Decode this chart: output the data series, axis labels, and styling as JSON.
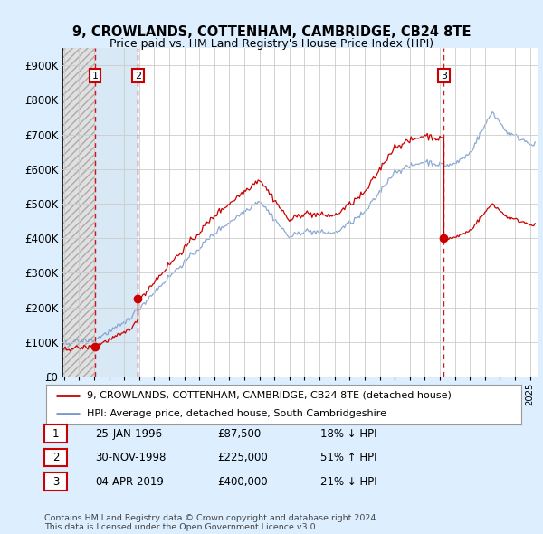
{
  "title1": "9, CROWLANDS, COTTENHAM, CAMBRIDGE, CB24 8TE",
  "title2": "Price paid vs. HM Land Registry's House Price Index (HPI)",
  "ytick_values": [
    0,
    100000,
    200000,
    300000,
    400000,
    500000,
    600000,
    700000,
    800000,
    900000
  ],
  "ylim": [
    0,
    950000
  ],
  "xlim_start": 1993.9,
  "xlim_end": 2025.5,
  "sale_color": "#cc0000",
  "hpi_color": "#7799cc",
  "legend_label1": "9, CROWLANDS, COTTENHAM, CAMBRIDGE, CB24 8TE (detached house)",
  "legend_label2": "HPI: Average price, detached house, South Cambridgeshire",
  "sale1_year": 1996.07,
  "sale1_price": 87500,
  "sale2_year": 1998.92,
  "sale2_price": 225000,
  "sale3_year": 2019.26,
  "sale3_price": 400000,
  "transactions": [
    {
      "num": 1,
      "date": "25-JAN-1996",
      "price": "£87,500",
      "hpi_note": "18% ↓ HPI"
    },
    {
      "num": 2,
      "date": "30-NOV-1998",
      "price": "£225,000",
      "hpi_note": "51% ↑ HPI"
    },
    {
      "num": 3,
      "date": "04-APR-2019",
      "price": "£400,000",
      "hpi_note": "21% ↓ HPI"
    }
  ],
  "footer1": "Contains HM Land Registry data © Crown copyright and database right 2024.",
  "footer2": "This data is licensed under the Open Government Licence v3.0.",
  "bg_color": "#ddeeff",
  "plot_bg": "#ffffff",
  "hatch_bg": "#dddddd",
  "shade_bg": "#ddeeff"
}
